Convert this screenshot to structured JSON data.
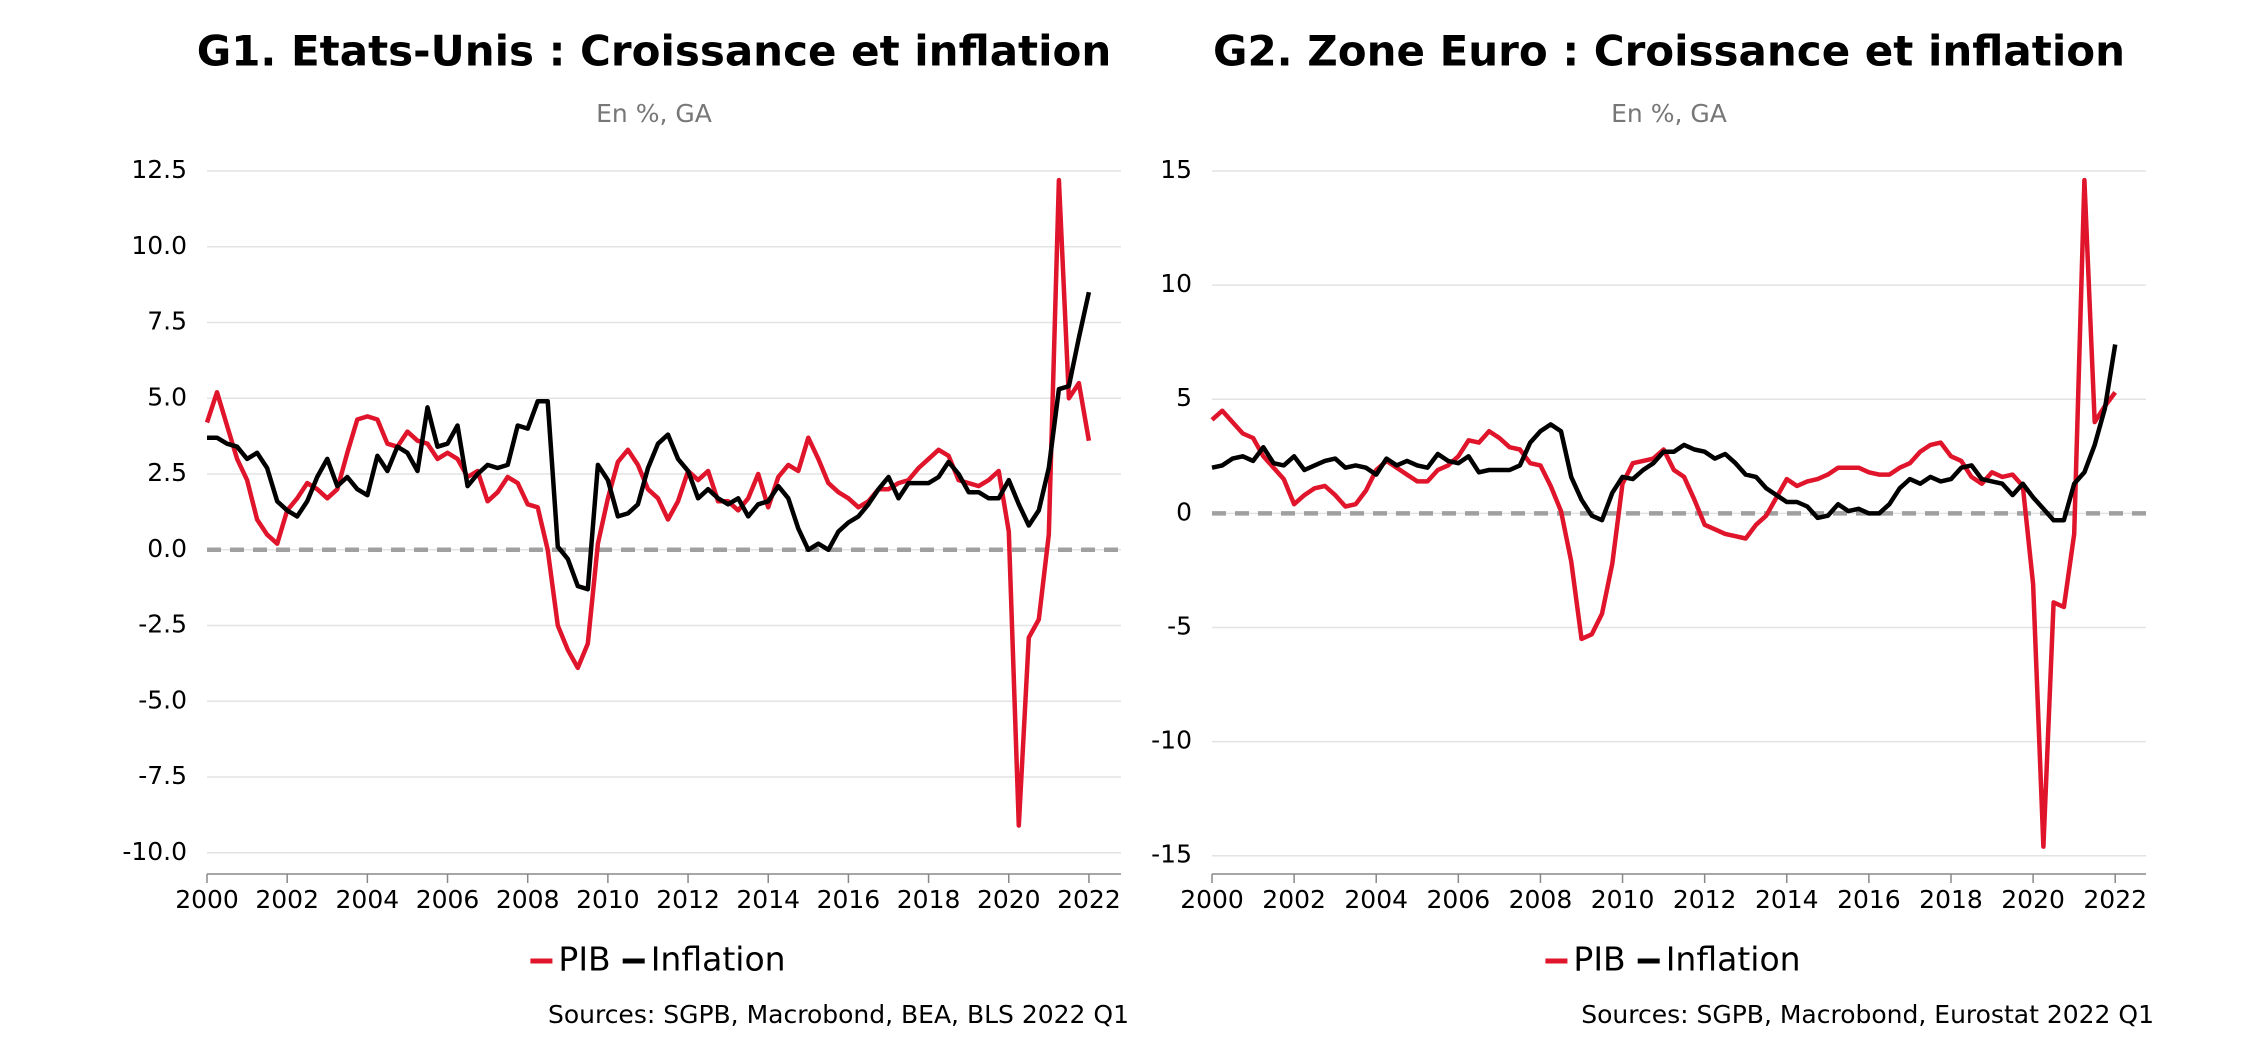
{
  "chart_data": [
    {
      "type": "line",
      "title": "G1. Etats-Unis : Croissance et inflation",
      "subtitle": "En %, GA",
      "source": "Sources: SGPB, Macrobond, BEA, BLS 2022 Q1",
      "x": [
        2000,
        2000.25,
        2000.5,
        2000.75,
        2001,
        2001.25,
        2001.5,
        2001.75,
        2002,
        2002.25,
        2002.5,
        2002.75,
        2003,
        2003.25,
        2003.5,
        2003.75,
        2004,
        2004.25,
        2004.5,
        2004.75,
        2005,
        2005.25,
        2005.5,
        2005.75,
        2006,
        2006.25,
        2006.5,
        2006.75,
        2007,
        2007.25,
        2007.5,
        2007.75,
        2008,
        2008.25,
        2008.5,
        2008.75,
        2009,
        2009.25,
        2009.5,
        2009.75,
        2010,
        2010.25,
        2010.5,
        2010.75,
        2011,
        2011.25,
        2011.5,
        2011.75,
        2012,
        2012.25,
        2012.5,
        2012.75,
        2013,
        2013.25,
        2013.5,
        2013.75,
        2014,
        2014.25,
        2014.5,
        2014.75,
        2015,
        2015.25,
        2015.5,
        2015.75,
        2016,
        2016.25,
        2016.5,
        2016.75,
        2017,
        2017.25,
        2017.5,
        2017.75,
        2018,
        2018.25,
        2018.5,
        2018.75,
        2019,
        2019.25,
        2019.5,
        2019.75,
        2020,
        2020.25,
        2020.5,
        2020.75,
        2021,
        2021.25,
        2021.5,
        2021.75,
        2022
      ],
      "series": [
        {
          "name": "PIB",
          "color": "#e0142a",
          "values": [
            4.2,
            5.2,
            4.1,
            3.0,
            2.3,
            1.0,
            0.5,
            0.2,
            1.3,
            1.7,
            2.2,
            2.0,
            1.7,
            2.0,
            3.2,
            4.3,
            4.4,
            4.3,
            3.5,
            3.4,
            3.9,
            3.6,
            3.5,
            3.0,
            3.2,
            3.0,
            2.4,
            2.6,
            1.6,
            1.9,
            2.4,
            2.2,
            1.5,
            1.4,
            0.0,
            -2.5,
            -3.3,
            -3.9,
            -3.1,
            0.2,
            1.7,
            2.9,
            3.3,
            2.8,
            2.0,
            1.7,
            1.0,
            1.6,
            2.6,
            2.3,
            2.6,
            1.6,
            1.6,
            1.3,
            1.7,
            2.5,
            1.4,
            2.4,
            2.8,
            2.6,
            3.7,
            3.0,
            2.2,
            1.9,
            1.7,
            1.4,
            1.6,
            2.0,
            2.0,
            2.2,
            2.3,
            2.7,
            3.0,
            3.3,
            3.1,
            2.3,
            2.2,
            2.1,
            2.3,
            2.6,
            0.6,
            -9.1,
            -2.9,
            -2.3,
            0.5,
            12.2,
            5.0,
            5.5,
            3.6
          ]
        },
        {
          "name": "Inflation",
          "color": "#000000",
          "values": [
            3.7,
            3.7,
            3.5,
            3.4,
            3.0,
            3.2,
            2.7,
            1.6,
            1.3,
            1.1,
            1.6,
            2.4,
            3.0,
            2.1,
            2.4,
            2.0,
            1.8,
            3.1,
            2.6,
            3.4,
            3.2,
            2.6,
            4.7,
            3.4,
            3.5,
            4.1,
            2.1,
            2.5,
            2.8,
            2.7,
            2.8,
            4.1,
            4.0,
            4.9,
            4.9,
            0.1,
            -0.3,
            -1.2,
            -1.3,
            2.8,
            2.3,
            1.1,
            1.2,
            1.5,
            2.7,
            3.5,
            3.8,
            3.0,
            2.6,
            1.7,
            2.0,
            1.7,
            1.5,
            1.7,
            1.1,
            1.5,
            1.6,
            2.1,
            1.7,
            0.7,
            0.0,
            0.2,
            0.0,
            0.6,
            0.9,
            1.1,
            1.5,
            2.0,
            2.4,
            1.7,
            2.2,
            2.2,
            2.2,
            2.4,
            2.9,
            2.5,
            1.9,
            1.9,
            1.7,
            1.7,
            2.3,
            1.5,
            0.8,
            1.3,
            2.7,
            5.3,
            5.4,
            7.0,
            8.5
          ]
        }
      ],
      "xlim": [
        2000,
        2022.8
      ],
      "xticks": [
        2000,
        2002,
        2004,
        2006,
        2008,
        2010,
        2012,
        2014,
        2016,
        2018,
        2020,
        2022
      ],
      "ylim": [
        -10.7,
        12.5
      ],
      "yticks": [
        {
          "value": -10,
          "label": "-10.0"
        },
        -7.5,
        {
          "value": -5,
          "label": "-5.0"
        },
        -2.5,
        {
          "value": 0,
          "label": "0.0"
        },
        2.5,
        {
          "value": 5,
          "label": "5.0"
        },
        7.5,
        {
          "value": 10,
          "label": "10.0"
        },
        12.5
      ],
      "grid": true,
      "reference_line": 0,
      "legend": "bottom"
    },
    {
      "type": "line",
      "title": "G2. Zone Euro : Croissance et inflation",
      "subtitle": "En %, GA",
      "source": "Sources: SGPB, Macrobond, Eurostat 2022 Q1",
      "x": [
        2000,
        2000.25,
        2000.5,
        2000.75,
        2001,
        2001.25,
        2001.5,
        2001.75,
        2002,
        2002.25,
        2002.5,
        2002.75,
        2003,
        2003.25,
        2003.5,
        2003.75,
        2004,
        2004.25,
        2004.5,
        2004.75,
        2005,
        2005.25,
        2005.5,
        2005.75,
        2006,
        2006.25,
        2006.5,
        2006.75,
        2007,
        2007.25,
        2007.5,
        2007.75,
        2008,
        2008.25,
        2008.5,
        2008.75,
        2009,
        2009.25,
        2009.5,
        2009.75,
        2010,
        2010.25,
        2010.5,
        2010.75,
        2011,
        2011.25,
        2011.5,
        2011.75,
        2012,
        2012.25,
        2012.5,
        2012.75,
        2013,
        2013.25,
        2013.5,
        2013.75,
        2014,
        2014.25,
        2014.5,
        2014.75,
        2015,
        2015.25,
        2015.5,
        2015.75,
        2016,
        2016.25,
        2016.5,
        2016.75,
        2017,
        2017.25,
        2017.5,
        2017.75,
        2018,
        2018.25,
        2018.5,
        2018.75,
        2019,
        2019.25,
        2019.5,
        2019.75,
        2020,
        2020.25,
        2020.5,
        2020.75,
        2021,
        2021.25,
        2021.5,
        2021.75,
        2022
      ],
      "series": [
        {
          "name": "PIB",
          "color": "#e0142a",
          "values": [
            4.1,
            4.5,
            4.0,
            3.5,
            3.3,
            2.5,
            2.0,
            1.5,
            0.4,
            0.8,
            1.1,
            1.2,
            0.8,
            0.3,
            0.4,
            1.0,
            1.9,
            2.3,
            2.0,
            1.7,
            1.4,
            1.4,
            1.9,
            2.1,
            2.5,
            3.2,
            3.1,
            3.6,
            3.3,
            2.9,
            2.8,
            2.2,
            2.1,
            1.2,
            0.1,
            -2.1,
            -5.5,
            -5.3,
            -4.4,
            -2.2,
            1.3,
            2.2,
            2.3,
            2.4,
            2.8,
            1.9,
            1.6,
            0.6,
            -0.5,
            -0.7,
            -0.9,
            -1.0,
            -1.1,
            -0.5,
            -0.1,
            0.7,
            1.5,
            1.2,
            1.4,
            1.5,
            1.7,
            2.0,
            2.0,
            2.0,
            1.8,
            1.7,
            1.7,
            2.0,
            2.2,
            2.7,
            3.0,
            3.1,
            2.5,
            2.3,
            1.6,
            1.3,
            1.8,
            1.6,
            1.7,
            1.2,
            -3.1,
            -14.6,
            -3.9,
            -4.1,
            -0.9,
            14.6,
            4.0,
            4.7,
            5.3
          ]
        },
        {
          "name": "Inflation",
          "color": "#000000",
          "values": [
            2.0,
            2.1,
            2.4,
            2.5,
            2.3,
            2.9,
            2.2,
            2.1,
            2.5,
            1.9,
            2.1,
            2.3,
            2.4,
            2.0,
            2.1,
            2.0,
            1.7,
            2.4,
            2.1,
            2.3,
            2.1,
            2.0,
            2.6,
            2.3,
            2.2,
            2.5,
            1.8,
            1.9,
            1.9,
            1.9,
            2.1,
            3.1,
            3.6,
            3.9,
            3.6,
            1.6,
            0.6,
            -0.1,
            -0.3,
            0.9,
            1.6,
            1.5,
            1.9,
            2.2,
            2.7,
            2.7,
            3.0,
            2.8,
            2.7,
            2.4,
            2.6,
            2.2,
            1.7,
            1.6,
            1.1,
            0.8,
            0.5,
            0.5,
            0.3,
            -0.2,
            -0.1,
            0.4,
            0.1,
            0.2,
            0.0,
            0.0,
            0.4,
            1.1,
            1.5,
            1.3,
            1.6,
            1.4,
            1.5,
            2.0,
            2.1,
            1.5,
            1.4,
            1.3,
            0.8,
            1.3,
            0.7,
            0.2,
            -0.3,
            -0.3,
            1.3,
            1.8,
            3.0,
            4.6,
            7.4
          ]
        }
      ],
      "xlim": [
        2000,
        2022.75
      ],
      "xticks": [
        2000,
        2002,
        2004,
        2006,
        2008,
        2010,
        2012,
        2014,
        2016,
        2018,
        2020,
        2022
      ],
      "ylim": [
        -15.8,
        15
      ],
      "yticks": [
        -15,
        -10,
        -5,
        0,
        5,
        10,
        15
      ],
      "grid": true,
      "reference_line": 0,
      "legend": "bottom"
    }
  ]
}
